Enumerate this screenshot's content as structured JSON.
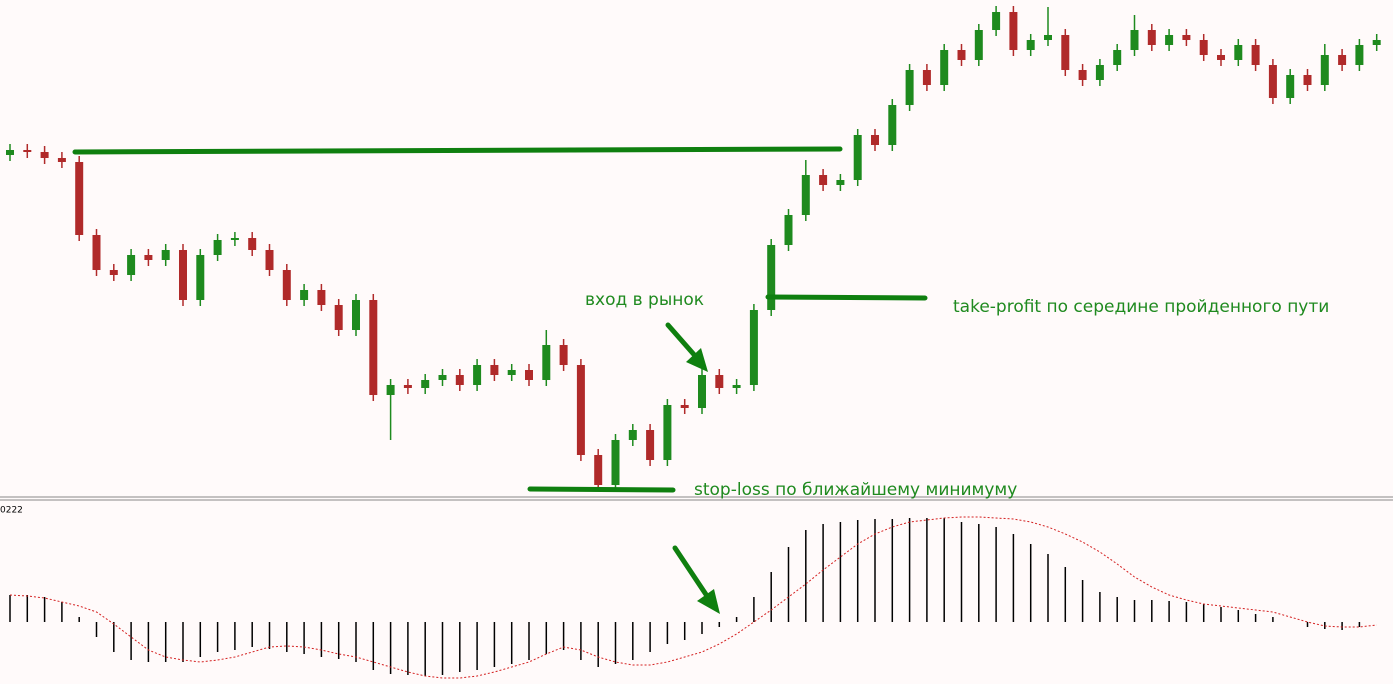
{
  "chart_data": [
    {
      "type": "candlestick",
      "ylim": [
        0,
        495
      ],
      "colors": {
        "up": "#1e8a1e",
        "down": "#b02a2a"
      },
      "annotations": [
        "вход в рынок",
        "take-profit по середине пройденного пути",
        "stop-loss по ближайшему минимуму"
      ],
      "open": [
        340,
        345,
        343,
        337,
        333,
        260,
        225,
        220,
        240,
        235,
        245,
        195,
        240,
        255,
        257,
        245,
        225,
        195,
        205,
        190,
        165,
        195,
        100,
        110,
        107,
        115,
        120,
        110,
        130,
        120,
        125,
        115,
        150,
        130,
        40,
        10,
        55,
        65,
        35,
        90,
        87,
        120,
        107,
        110,
        185,
        250,
        280,
        320,
        310,
        315,
        360,
        350,
        390,
        425,
        410,
        445,
        435,
        465,
        483,
        445,
        455,
        460,
        425,
        415,
        430,
        445,
        465,
        450,
        460,
        455,
        440,
        435,
        450,
        430,
        397,
        420,
        410,
        440,
        430,
        450
      ],
      "high": [
        351,
        351,
        349,
        343,
        339,
        266,
        231,
        246,
        246,
        251,
        251,
        246,
        261,
        263,
        263,
        251,
        231,
        211,
        211,
        196,
        201,
        201,
        116,
        116,
        121,
        126,
        126,
        136,
        136,
        131,
        131,
        165,
        156,
        136,
        46,
        61,
        71,
        71,
        96,
        96,
        126,
        126,
        116,
        191,
        256,
        286,
        335,
        326,
        321,
        366,
        366,
        396,
        431,
        431,
        451,
        451,
        471,
        489,
        489,
        461,
        488,
        466,
        431,
        436,
        451,
        480,
        471,
        466,
        466,
        461,
        446,
        456,
        456,
        436,
        426,
        426,
        451,
        446,
        456,
        461
      ],
      "low": [
        334,
        337,
        331,
        327,
        254,
        219,
        214,
        214,
        229,
        229,
        189,
        189,
        234,
        249,
        239,
        219,
        189,
        189,
        184,
        159,
        159,
        94,
        55,
        101,
        101,
        109,
        104,
        104,
        114,
        114,
        109,
        109,
        124,
        34,
        4,
        4,
        49,
        29,
        29,
        81,
        81,
        101,
        101,
        104,
        179,
        244,
        274,
        304,
        304,
        309,
        344,
        344,
        384,
        404,
        404,
        429,
        429,
        459,
        439,
        439,
        449,
        419,
        409,
        409,
        424,
        439,
        444,
        444,
        449,
        434,
        429,
        429,
        424,
        391,
        391,
        404,
        404,
        424,
        424,
        444
      ],
      "close": [
        345,
        343,
        337,
        333,
        260,
        225,
        220,
        240,
        235,
        245,
        195,
        240,
        255,
        257,
        245,
        225,
        195,
        205,
        190,
        165,
        195,
        100,
        110,
        107,
        115,
        120,
        110,
        130,
        120,
        125,
        115,
        150,
        130,
        40,
        10,
        55,
        65,
        35,
        90,
        87,
        120,
        107,
        110,
        185,
        250,
        280,
        320,
        310,
        315,
        360,
        350,
        390,
        425,
        410,
        445,
        435,
        465,
        483,
        445,
        455,
        460,
        425,
        415,
        430,
        445,
        465,
        450,
        460,
        455,
        440,
        435,
        450,
        430,
        397,
        420,
        410,
        440,
        430,
        450,
        455
      ]
    },
    {
      "type": "macd",
      "label": "0222",
      "ylim": [
        -62,
        119
      ],
      "series": [
        {
          "type": "bar",
          "color": "#000000",
          "values": [
            27,
            27,
            25,
            20,
            5,
            -15,
            -30,
            -38,
            -40,
            -40,
            -40,
            -35,
            -30,
            -28,
            -25,
            -27,
            -30,
            -32,
            -35,
            -37,
            -40,
            -48,
            -52,
            -53,
            -54,
            -53,
            -50,
            -48,
            -45,
            -42,
            -38,
            -32,
            -28,
            -38,
            -45,
            -42,
            -38,
            -30,
            -22,
            -18,
            -12,
            -5,
            5,
            25,
            50,
            75,
            92,
            98,
            100,
            102,
            103,
            103,
            104,
            104,
            104,
            100,
            98,
            95,
            88,
            78,
            68,
            55,
            42,
            30,
            25,
            22,
            22,
            21,
            20,
            18,
            15,
            12,
            8,
            5,
            0,
            -5,
            -7,
            -8,
            -5,
            0
          ]
        },
        {
          "type": "line",
          "color": "#d42020",
          "values": [
            27,
            26,
            24,
            20,
            16,
            10,
            -2,
            -15,
            -28,
            -35,
            -38,
            -40,
            -38,
            -35,
            -30,
            -25,
            -24,
            -25,
            -28,
            -32,
            -35,
            -40,
            -45,
            -50,
            -54,
            -56,
            -56,
            -54,
            -50,
            -45,
            -40,
            -32,
            -25,
            -28,
            -35,
            -40,
            -43,
            -43,
            -40,
            -35,
            -30,
            -22,
            -12,
            0,
            12,
            25,
            38,
            52,
            65,
            78,
            88,
            95,
            100,
            102,
            104,
            105,
            105,
            104,
            103,
            100,
            95,
            88,
            80,
            70,
            58,
            45,
            35,
            27,
            22,
            18,
            16,
            14,
            12,
            10,
            5,
            0,
            -4,
            -5,
            -5,
            -3
          ]
        }
      ]
    }
  ]
}
